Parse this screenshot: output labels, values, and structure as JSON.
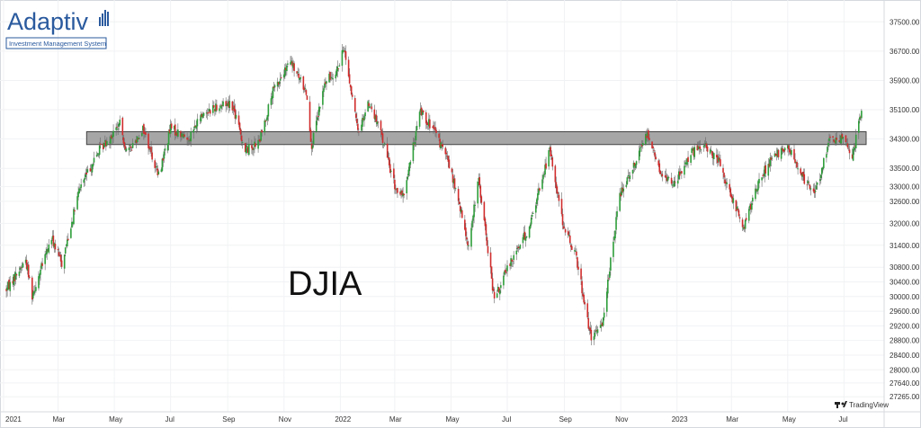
{
  "logo": {
    "word": "Adaptiv",
    "tagline": "Investment Management System"
  },
  "watermark": {
    "text": "TradingView"
  },
  "colors": {
    "up": "#2e9e3a",
    "down": "#d12c2c",
    "band_fill": "#a6a6a6",
    "band_stroke": "#444444",
    "grid": "#f1f2f4"
  },
  "chart_data": {
    "type": "candlestick",
    "title": "DJIA",
    "xlabel": "",
    "ylabel": "",
    "ylim": [
      27000,
      37900
    ],
    "x_range": [
      "2021-01-01",
      "2023-07-25"
    ],
    "y_ticks": [
      "37500.00",
      "36700.00",
      "35900.00",
      "35100.00",
      "34300.00",
      "33500.00",
      "33000.00",
      "32600.00",
      "32000.00",
      "31400.00",
      "30800.00",
      "30400.00",
      "30000.00",
      "29600.00",
      "29200.00",
      "28800.00",
      "28400.00",
      "28000.00",
      "27640.00",
      "27265.00"
    ],
    "x_ticks": [
      {
        "label": "2021",
        "date": "2021-01-01"
      },
      {
        "label": "Mar",
        "date": "2021-03-01"
      },
      {
        "label": "May",
        "date": "2021-05-01"
      },
      {
        "label": "Jul",
        "date": "2021-07-01"
      },
      {
        "label": "Sep",
        "date": "2021-09-01"
      },
      {
        "label": "Nov",
        "date": "2021-11-01"
      },
      {
        "label": "2022",
        "date": "2022-01-01"
      },
      {
        "label": "Mar",
        "date": "2022-03-01"
      },
      {
        "label": "May",
        "date": "2022-05-01"
      },
      {
        "label": "Jul",
        "date": "2022-07-01"
      },
      {
        "label": "Sep",
        "date": "2022-09-01"
      },
      {
        "label": "Nov",
        "date": "2022-11-01"
      },
      {
        "label": "2023",
        "date": "2023-01-01"
      },
      {
        "label": "Mar",
        "date": "2023-03-01"
      },
      {
        "label": "May",
        "date": "2023-05-01"
      },
      {
        "label": "Jul",
        "date": "2023-07-01"
      }
    ],
    "resistance_zone": {
      "low": 34150,
      "high": 34500,
      "start": "2021-04-01"
    },
    "price_path": [
      [
        "2021-01-04",
        30200
      ],
      [
        "2021-01-25",
        31000
      ],
      [
        "2021-02-01",
        30050
      ],
      [
        "2021-02-22",
        31600
      ],
      [
        "2021-03-05",
        30900
      ],
      [
        "2021-03-25",
        33000
      ],
      [
        "2021-04-15",
        34000
      ],
      [
        "2021-05-07",
        34700
      ],
      [
        "2021-05-15",
        33900
      ],
      [
        "2021-06-01",
        34600
      ],
      [
        "2021-06-18",
        33300
      ],
      [
        "2021-07-01",
        34600
      ],
      [
        "2021-07-20",
        34300
      ],
      [
        "2021-08-05",
        35000
      ],
      [
        "2021-08-20",
        35200
      ],
      [
        "2021-09-05",
        35300
      ],
      [
        "2021-09-20",
        34000
      ],
      [
        "2021-10-05",
        34200
      ],
      [
        "2021-10-20",
        35600
      ],
      [
        "2021-11-08",
        36400
      ],
      [
        "2021-11-25",
        35600
      ],
      [
        "2021-12-01",
        34100
      ],
      [
        "2021-12-15",
        35800
      ],
      [
        "2021-12-31",
        36300
      ],
      [
        "2022-01-05",
        36800
      ],
      [
        "2022-01-20",
        34500
      ],
      [
        "2022-02-01",
        35300
      ],
      [
        "2022-02-15",
        34400
      ],
      [
        "2022-03-01",
        33000
      ],
      [
        "2022-03-10",
        32700
      ],
      [
        "2022-03-29",
        35100
      ],
      [
        "2022-04-15",
        34400
      ],
      [
        "2022-04-28",
        33700
      ],
      [
        "2022-05-05",
        33000
      ],
      [
        "2022-05-20",
        31400
      ],
      [
        "2022-05-31",
        33200
      ],
      [
        "2022-06-17",
        29900
      ],
      [
        "2022-07-05",
        31000
      ],
      [
        "2022-07-25",
        31900
      ],
      [
        "2022-08-16",
        34000
      ],
      [
        "2022-09-01",
        31800
      ],
      [
        "2022-09-13",
        31200
      ],
      [
        "2022-09-30",
        28800
      ],
      [
        "2022-10-12",
        29300
      ],
      [
        "2022-10-31",
        32800
      ],
      [
        "2022-11-15",
        33600
      ],
      [
        "2022-11-30",
        34500
      ],
      [
        "2022-12-15",
        33300
      ],
      [
        "2022-12-30",
        33100
      ],
      [
        "2023-01-15",
        33900
      ],
      [
        "2023-02-01",
        34100
      ],
      [
        "2023-02-15",
        33700
      ],
      [
        "2023-03-01",
        32700
      ],
      [
        "2023-03-15",
        31900
      ],
      [
        "2023-03-31",
        33200
      ],
      [
        "2023-04-15",
        33800
      ],
      [
        "2023-05-01",
        34100
      ],
      [
        "2023-05-15",
        33300
      ],
      [
        "2023-05-31",
        32900
      ],
      [
        "2023-06-15",
        34200
      ],
      [
        "2023-07-01",
        34400
      ],
      [
        "2023-07-10",
        33800
      ],
      [
        "2023-07-20",
        35100
      ]
    ]
  }
}
